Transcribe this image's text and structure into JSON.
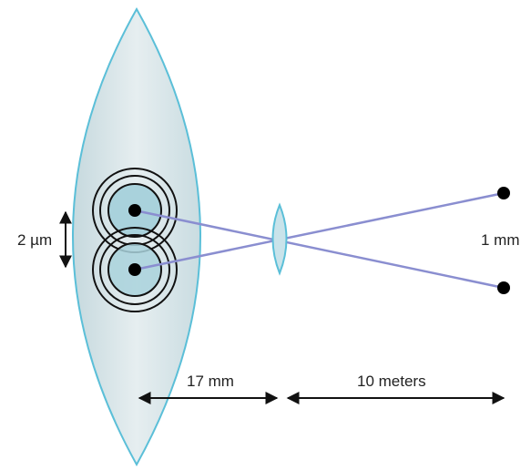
{
  "labels": {
    "retina_separation": "2 µm",
    "object_separation": "1 mm",
    "eye_distance": "17 mm",
    "object_distance": "10 meters"
  },
  "colors": {
    "lens_fill": "#d6e6ea",
    "lens_stroke": "#5bbfd8",
    "spot_fill": "#a9d2dc",
    "ring": "#111111",
    "ray": "#8a8ed0",
    "arrow": "#111111"
  }
}
